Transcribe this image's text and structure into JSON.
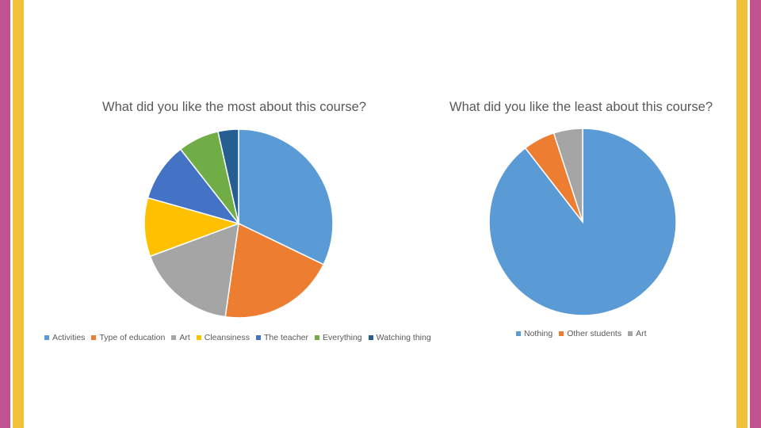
{
  "chart_data": [
    {
      "type": "pie",
      "title": "What did you like the most about this course?",
      "categories": [
        "Activities",
        "Type of education",
        "Art",
        "Cleansiness",
        "The teacher",
        "Everything",
        "Watching thing"
      ],
      "values": [
        32,
        20,
        17,
        10,
        10,
        7,
        3.5
      ],
      "colors": [
        "#5B9BD5",
        "#ED7D31",
        "#A5A5A5",
        "#FFC000",
        "#4472C4",
        "#70AD47",
        "#255E91"
      ],
      "legend": "bottom"
    },
    {
      "type": "pie",
      "title": "What did you like the least about this course?",
      "categories": [
        "Nothing",
        "Other students",
        "Art"
      ],
      "values": [
        89.5,
        5.5,
        5
      ],
      "colors": [
        "#5B9BD5",
        "#ED7D31",
        "#A5A5A5"
      ],
      "legend": "bottom"
    }
  ],
  "theme": {
    "outer_bar": "#C0538F",
    "inner_bar": "#F0C23A"
  }
}
